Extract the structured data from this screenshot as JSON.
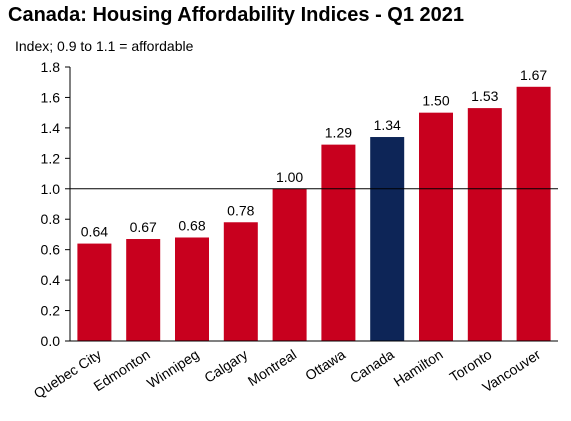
{
  "title": "Canada: Housing Affordability Indices - Q1 2021",
  "subtitle": "Index; 0.9 to 1.1 = affordable",
  "chart_data": {
    "type": "bar",
    "title": "Canada: Housing Affordability Indices - Q1 2021",
    "subtitle": "Index; 0.9 to 1.1 = affordable",
    "categories": [
      "Quebec City",
      "Edmonton",
      "Winnipeg",
      "Calgary",
      "Montreal",
      "Ottawa",
      "Canada",
      "Hamilton",
      "Toronto",
      "Vancouver"
    ],
    "values": [
      0.64,
      0.67,
      0.68,
      0.78,
      1.0,
      1.29,
      1.34,
      1.5,
      1.53,
      1.67
    ],
    "data_labels": [
      "0.64",
      "0.67",
      "0.68",
      "0.78",
      "1.00",
      "1.29",
      "1.34",
      "1.50",
      "1.53",
      "1.67"
    ],
    "highlight_category": "Canada",
    "ylim": [
      0.0,
      1.8
    ],
    "yticks": [
      "0.0",
      "0.2",
      "0.4",
      "0.6",
      "0.8",
      "1.0",
      "1.2",
      "1.4",
      "1.6",
      "1.8"
    ],
    "ytick_values": [
      0.0,
      0.2,
      0.4,
      0.6,
      0.8,
      1.0,
      1.2,
      1.4,
      1.6,
      1.8
    ],
    "reference_line": 1.0,
    "xlabel": "",
    "ylabel": "",
    "grid": false,
    "legend": "none",
    "colors": {
      "bar": "#c8001e",
      "highlight": "#0d2557",
      "axis": "#000000"
    }
  }
}
